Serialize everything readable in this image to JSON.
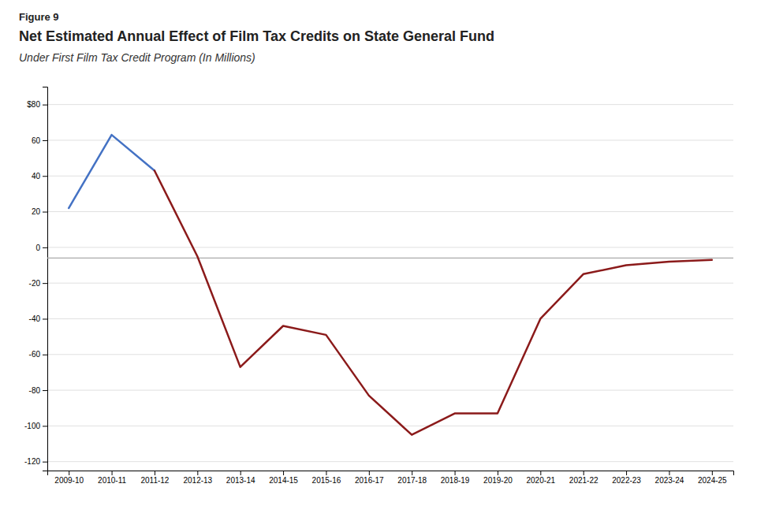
{
  "chart_data": {
    "type": "line",
    "annotations": [
      "Figure 9"
    ],
    "title": "Net Estimated Annual Effect of Film Tax Credits on State General Fund",
    "subtitle": "Under First Film Tax Credit Program (In Millions)",
    "categories": [
      "2009-10",
      "2010-11",
      "2011-12",
      "2012-13",
      "2013-14",
      "2014-15",
      "2015-16",
      "2016-17",
      "2017-18",
      "2018-19",
      "2019-20",
      "2020-21",
      "2021-22",
      "2022-23",
      "2023-24",
      "2024-25"
    ],
    "series": [
      {
        "color": "#4472C4",
        "values": [
          22,
          63,
          43,
          null,
          null,
          null,
          null,
          null,
          null,
          null,
          null,
          null,
          null,
          null,
          null,
          null
        ]
      },
      {
        "color": "#8B1A1A",
        "values": [
          null,
          null,
          43,
          -5,
          -67,
          -44,
          -49,
          -83,
          -105,
          -93,
          -93,
          -40,
          -15,
          -10,
          -8,
          -7
        ]
      }
    ],
    "hline": {
      "y": -6,
      "color": "#AAAAAA"
    },
    "ylim": [
      -125,
      90
    ],
    "yticks": [
      -120,
      -100,
      -80,
      -60,
      -40,
      -20,
      0,
      20,
      40,
      60,
      {
        "value": 80,
        "label": "$80"
      }
    ],
    "grid": true
  }
}
